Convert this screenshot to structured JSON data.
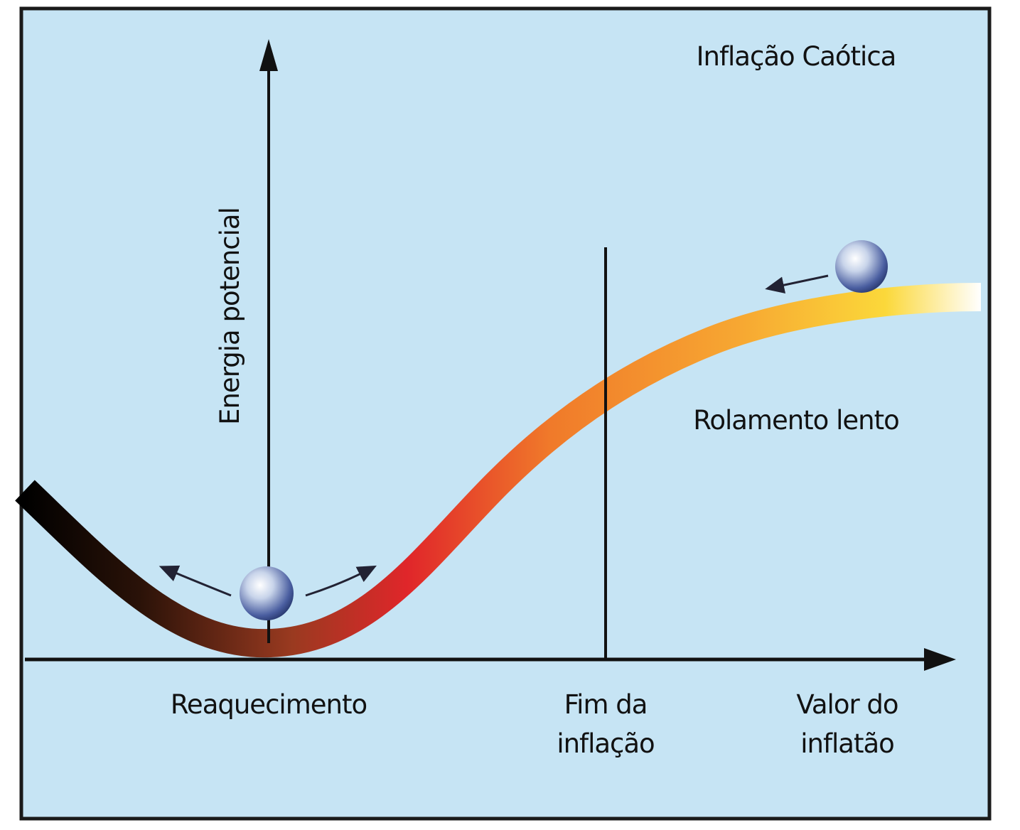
{
  "title": "Inflação Caótica",
  "y_axis_label": "Energia potencial",
  "annotation": "Rolamento lento",
  "x_labels": [
    {
      "lines": [
        "Reaquecimento"
      ]
    },
    {
      "lines": [
        "Fim da",
        "inflação"
      ]
    },
    {
      "lines": [
        "Valor do",
        "inflatão"
      ]
    }
  ]
}
